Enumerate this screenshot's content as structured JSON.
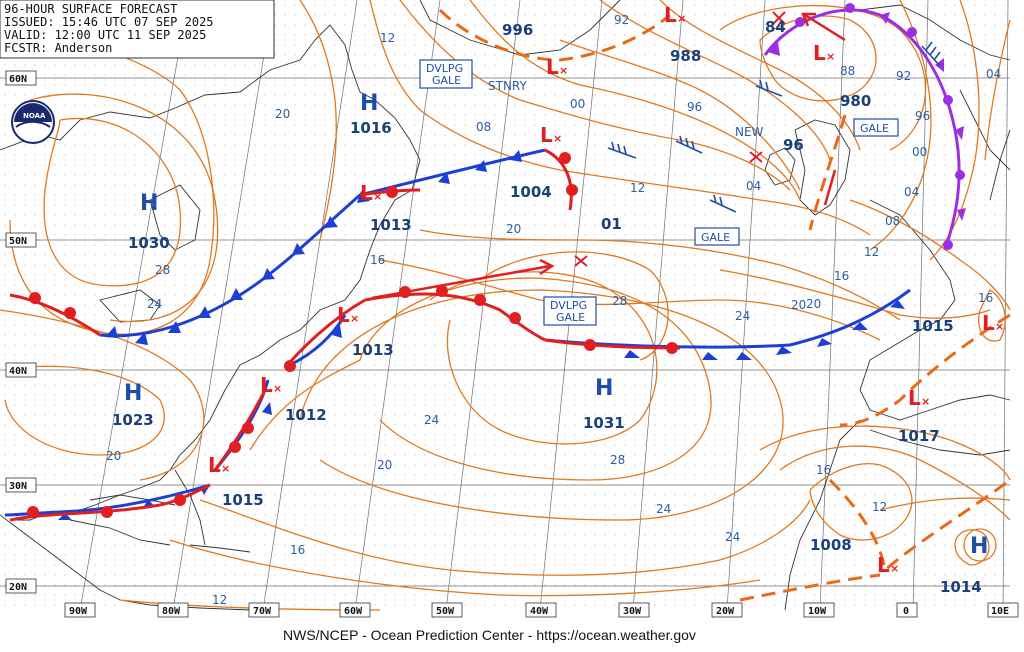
{
  "header": {
    "title": "96-HOUR SURFACE FORECAST",
    "issued": "ISSUED: 15:46 UTC 07 SEP 2025",
    "valid": "VALID:  12:00 UTC 11 SEP 2025",
    "forecaster": "FCSTR:  Anderson"
  },
  "logo": {
    "text": "NOAA"
  },
  "credit": "NWS/NCEP - Ocean Prediction Center - https://ocean.weather.gov",
  "lat_labels": [
    "60N",
    "50N",
    "40N",
    "30N",
    "20N"
  ],
  "lon_labels": [
    "90W",
    "80W",
    "70W",
    "60W",
    "50W",
    "40W",
    "30W",
    "20W",
    "10W",
    "0",
    "10E"
  ],
  "pressure_centers": [
    {
      "type": "H",
      "value": "1016"
    },
    {
      "type": "H",
      "value": "1030"
    },
    {
      "type": "H",
      "value": "1023"
    },
    {
      "type": "H",
      "value": "1031"
    },
    {
      "type": "H",
      "value": "1014"
    },
    {
      "type": "L",
      "value": "1004"
    },
    {
      "type": "L",
      "value": "1013"
    },
    {
      "type": "L",
      "value": "1013"
    },
    {
      "type": "L",
      "value": "1012"
    },
    {
      "type": "L",
      "value": "1015"
    },
    {
      "type": "L",
      "value": "1015"
    },
    {
      "type": "L",
      "value": "1017"
    },
    {
      "type": "L",
      "value": "1008"
    },
    {
      "type": "L",
      "value": "996"
    },
    {
      "type": "L",
      "value": "988"
    },
    {
      "type": "L",
      "value": "980"
    },
    {
      "type": "L",
      "value": "84"
    },
    {
      "type": "L",
      "value": "96"
    },
    {
      "type": "L",
      "value": "01"
    }
  ],
  "warnings": [
    "DVLPG\nGALE",
    "DVLPG\nGALE",
    "GALE",
    "GALE"
  ],
  "annotations": [
    "STNRY",
    "NEW"
  ],
  "isobar_labels": [
    "12",
    "20",
    "08",
    "00",
    "96",
    "92",
    "88",
    "92",
    "04",
    "96",
    "00",
    "04",
    "08",
    "12",
    "16",
    "20",
    "24",
    "28",
    "12",
    "16",
    "24",
    "28",
    "20",
    "24",
    "28",
    "20",
    "24",
    "16",
    "12",
    "20",
    "16",
    "12",
    "04",
    "16",
    "24",
    "20",
    "12",
    "16",
    "00",
    "04",
    "08"
  ]
}
